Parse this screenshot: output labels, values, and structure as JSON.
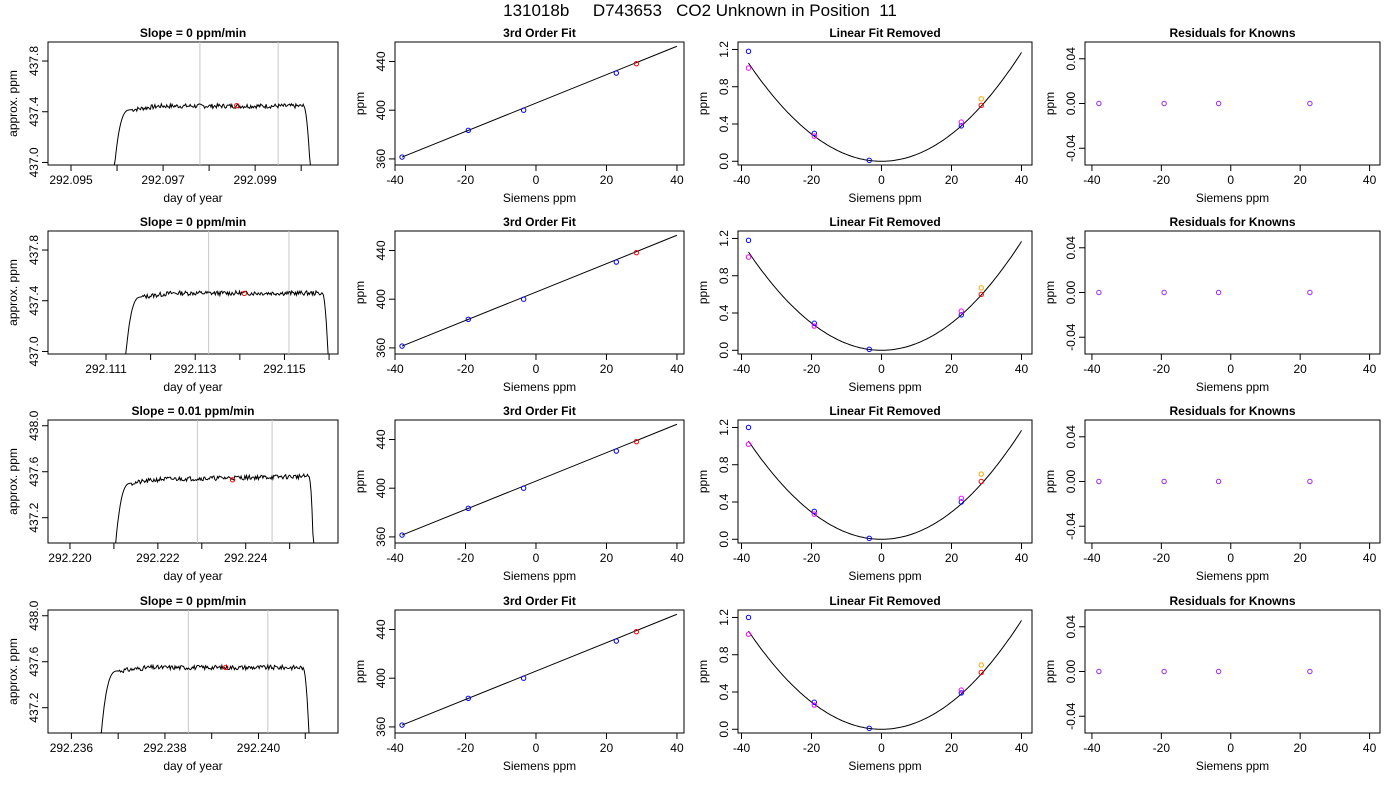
{
  "title": "131018b     D743653   CO2 Unknown in Position  11",
  "colors": {
    "series_line": "#000000",
    "time_marker": "#c8c8c8",
    "known_point": "#0000ff",
    "unknown_point": "#ff0000",
    "ref_magenta": "#ff00ff",
    "ref_orange": "#ffa500",
    "purple_point": "#a020f0"
  },
  "chart_data": [
    {
      "row": 1,
      "panel": "time",
      "type": "line",
      "title": "Slope =  0  ppm/min",
      "xlabel": "day of year",
      "ylabel": "approx. ppm",
      "xlim": [
        292.0945,
        292.1008
      ],
      "ylim": [
        436.98,
        437.95
      ],
      "xticks": [
        292.095,
        292.097,
        292.099
      ],
      "xtick_labels": [
        "292.095",
        "292.097",
        "292.099"
      ],
      "minor_ticks": [
        292.096,
        292.098,
        292.1
      ],
      "yticks": [
        437.0,
        437.4,
        437.8
      ],
      "ytick_labels": [
        "437.0",
        "437.4",
        "437.8"
      ],
      "vlines": [
        292.0978,
        292.0995
      ],
      "plateau": 437.445,
      "x_start": 292.0959,
      "x_rise_end": 292.0963,
      "x_fall_start": 292.10005,
      "x_end": 292.10022,
      "noise_seed": 7,
      "noise_amp": 0.018,
      "unknown_point": {
        "x": 292.0986,
        "y": 437.448
      }
    },
    {
      "row": 1,
      "panel": "fit",
      "type": "line",
      "title": "3rd Order Fit",
      "xlabel": "Siemens ppm",
      "ylabel": "ppm",
      "xlim": [
        -40,
        42
      ],
      "ylim": [
        355,
        456
      ],
      "xticks": [
        -40,
        -20,
        0,
        20,
        40
      ],
      "xtick_labels": [
        "-40",
        "-20",
        "0",
        "20",
        "40"
      ],
      "yticks": [
        360,
        400,
        440
      ],
      "ytick_labels": [
        "360",
        "400",
        "440"
      ],
      "line": {
        "x": [
          -38,
          40
        ],
        "y": [
          361.5,
          452.5
        ]
      },
      "known_points": {
        "x": [
          -38,
          -19.2,
          -3.5,
          22.8
        ],
        "y": [
          361.5,
          383.5,
          400,
          430.5
        ]
      },
      "unknown_point": {
        "x": 28.5,
        "y": 438.2
      }
    },
    {
      "row": 1,
      "panel": "linfit",
      "type": "scatter",
      "title": "Linear Fit Removed",
      "xlabel": "Siemens ppm",
      "ylabel": "ppm",
      "xlim": [
        -41,
        43
      ],
      "ylim": [
        -0.04,
        1.28
      ],
      "xticks": [
        -40,
        -20,
        0,
        20,
        40
      ],
      "xtick_labels": [
        "-40",
        "-20",
        "0",
        "20",
        "40"
      ],
      "yticks": [
        0,
        0.4,
        0.8,
        1.2
      ],
      "ytick_labels": [
        "0.0",
        "0.4",
        "0.8",
        "1.2"
      ],
      "curve_coef": 0.00073,
      "points": [
        {
          "x": -38,
          "y": 1.18,
          "c": "blue"
        },
        {
          "x": -38,
          "y": 1.0,
          "c": "magenta"
        },
        {
          "x": -19.2,
          "y": 0.3,
          "c": "blue"
        },
        {
          "x": -19.2,
          "y": 0.27,
          "c": "magenta"
        },
        {
          "x": -3.5,
          "y": 0.01,
          "c": "blue"
        },
        {
          "x": 22.8,
          "y": 0.38,
          "c": "blue"
        },
        {
          "x": 22.8,
          "y": 0.42,
          "c": "magenta"
        },
        {
          "x": 28.5,
          "y": 0.6,
          "c": "red"
        },
        {
          "x": 28.5,
          "y": 0.67,
          "c": "orange"
        }
      ]
    },
    {
      "row": 1,
      "panel": "resid",
      "type": "scatter",
      "title": "Residuals for Knowns",
      "xlabel": "Siemens ppm",
      "ylabel": "ppm",
      "xlim": [
        -42,
        43
      ],
      "ylim": [
        -0.055,
        0.055
      ],
      "xticks": [
        -40,
        -20,
        0,
        20,
        40
      ],
      "xtick_labels": [
        "-40",
        "-20",
        "0",
        "20",
        "40"
      ],
      "yticks": [
        -0.04,
        0,
        0.04
      ],
      "ytick_labels": [
        "-0.04",
        "0.00",
        "0.04"
      ],
      "points": [
        {
          "x": -38,
          "y": 0
        },
        {
          "x": -19.2,
          "y": 0
        },
        {
          "x": -3.5,
          "y": 0
        },
        {
          "x": 22.8,
          "y": 0
        }
      ]
    },
    {
      "row": 2,
      "panel": "time",
      "type": "line",
      "title": "Slope =  0  ppm/min",
      "xlabel": "day of year",
      "ylabel": "approx. ppm",
      "xlim": [
        292.1097,
        292.1162
      ],
      "ylim": [
        436.98,
        437.95
      ],
      "xticks": [
        292.111,
        292.113,
        292.115
      ],
      "xtick_labels": [
        "292.111",
        "292.113",
        "292.115"
      ],
      "minor_ticks": [
        292.112,
        292.114,
        292.116
      ],
      "yticks": [
        437.0,
        437.4,
        437.8
      ],
      "ytick_labels": [
        "437.0",
        "437.4",
        "437.8"
      ],
      "vlines": [
        292.1133,
        292.1151
      ],
      "plateau": 437.46,
      "x_start": 292.1114,
      "x_rise_end": 292.1118,
      "x_fall_start": 292.11585,
      "x_end": 292.116,
      "noise_seed": 13,
      "noise_amp": 0.018,
      "unknown_point": {
        "x": 292.1141,
        "y": 437.458
      }
    },
    {
      "row": 2,
      "panel": "fit",
      "type": "line",
      "title": "3rd Order Fit",
      "xlabel": "Siemens ppm",
      "ylabel": "ppm",
      "xlim": [
        -40,
        42
      ],
      "ylim": [
        355,
        456
      ],
      "xticks": [
        -40,
        -20,
        0,
        20,
        40
      ],
      "xtick_labels": [
        "-40",
        "-20",
        "0",
        "20",
        "40"
      ],
      "yticks": [
        360,
        400,
        440
      ],
      "ytick_labels": [
        "360",
        "400",
        "440"
      ],
      "line": {
        "x": [
          -38,
          40
        ],
        "y": [
          361.5,
          452.5
        ]
      },
      "known_points": {
        "x": [
          -38,
          -19.2,
          -3.5,
          22.8
        ],
        "y": [
          361.5,
          383.5,
          400,
          430.5
        ]
      },
      "unknown_point": {
        "x": 28.5,
        "y": 438.2
      }
    },
    {
      "row": 2,
      "panel": "linfit",
      "type": "scatter",
      "title": "Linear Fit Removed",
      "xlabel": "Siemens ppm",
      "ylabel": "ppm",
      "xlim": [
        -41,
        43
      ],
      "ylim": [
        -0.04,
        1.28
      ],
      "xticks": [
        -40,
        -20,
        0,
        20,
        40
      ],
      "xtick_labels": [
        "-40",
        "-20",
        "0",
        "20",
        "40"
      ],
      "yticks": [
        0,
        0.4,
        0.8,
        1.2
      ],
      "ytick_labels": [
        "0.0",
        "0.4",
        "0.8",
        "1.2"
      ],
      "curve_coef": 0.00073,
      "points": [
        {
          "x": -38,
          "y": 1.18,
          "c": "blue"
        },
        {
          "x": -38,
          "y": 1.0,
          "c": "magenta"
        },
        {
          "x": -19.2,
          "y": 0.29,
          "c": "blue"
        },
        {
          "x": -19.2,
          "y": 0.26,
          "c": "magenta"
        },
        {
          "x": -3.5,
          "y": 0.01,
          "c": "blue"
        },
        {
          "x": 22.8,
          "y": 0.38,
          "c": "blue"
        },
        {
          "x": 22.8,
          "y": 0.42,
          "c": "magenta"
        },
        {
          "x": 28.5,
          "y": 0.6,
          "c": "red"
        },
        {
          "x": 28.5,
          "y": 0.67,
          "c": "orange"
        }
      ]
    },
    {
      "row": 2,
      "panel": "resid",
      "type": "scatter",
      "title": "Residuals for Knowns",
      "xlabel": "Siemens ppm",
      "ylabel": "ppm",
      "xlim": [
        -42,
        43
      ],
      "ylim": [
        -0.055,
        0.055
      ],
      "xticks": [
        -40,
        -20,
        0,
        20,
        40
      ],
      "xtick_labels": [
        "-40",
        "-20",
        "0",
        "20",
        "40"
      ],
      "yticks": [
        -0.04,
        0,
        0.04
      ],
      "ytick_labels": [
        "-0.04",
        "0.00",
        "0.04"
      ],
      "points": [
        {
          "x": -38,
          "y": 0
        },
        {
          "x": -19.2,
          "y": 0
        },
        {
          "x": -3.5,
          "y": 0
        },
        {
          "x": 22.8,
          "y": 0
        }
      ]
    },
    {
      "row": 3,
      "panel": "time",
      "type": "line",
      "title": "Slope =  0.01  ppm/min",
      "xlabel": "day of year",
      "ylabel": "approx. ppm",
      "xlim": [
        292.2195,
        292.2261
      ],
      "ylim": [
        436.98,
        438.05
      ],
      "xticks": [
        292.22,
        292.222,
        292.224
      ],
      "xtick_labels": [
        "292.220",
        "292.222",
        "292.224"
      ],
      "minor_ticks": [
        292.221,
        292.223,
        292.225
      ],
      "yticks": [
        437.2,
        437.6,
        438.0
      ],
      "ytick_labels": [
        "437.2",
        "437.6",
        "438.0"
      ],
      "vlines": [
        292.2229,
        292.2246
      ],
      "plateau": 437.53,
      "x_start": 292.221,
      "x_rise_end": 292.2214,
      "x_fall_start": 292.22545,
      "x_end": 292.22555,
      "slope_rise": 0.03,
      "noise_seed": 21,
      "noise_amp": 0.02,
      "unknown_point": {
        "x": 292.2237,
        "y": 437.53
      }
    },
    {
      "row": 3,
      "panel": "fit",
      "type": "line",
      "title": "3rd Order Fit",
      "xlabel": "Siemens ppm",
      "ylabel": "ppm",
      "xlim": [
        -40,
        42
      ],
      "ylim": [
        355,
        456
      ],
      "xticks": [
        -40,
        -20,
        0,
        20,
        40
      ],
      "xtick_labels": [
        "-40",
        "-20",
        "0",
        "20",
        "40"
      ],
      "yticks": [
        360,
        400,
        440
      ],
      "ytick_labels": [
        "360",
        "400",
        "440"
      ],
      "line": {
        "x": [
          -38,
          40
        ],
        "y": [
          361.5,
          452.5
        ]
      },
      "known_points": {
        "x": [
          -38,
          -19.2,
          -3.5,
          22.8
        ],
        "y": [
          361.5,
          383.5,
          400,
          430.5
        ]
      },
      "unknown_point": {
        "x": 28.5,
        "y": 438.2
      }
    },
    {
      "row": 3,
      "panel": "linfit",
      "type": "scatter",
      "title": "Linear Fit Removed",
      "xlabel": "Siemens ppm",
      "ylabel": "ppm",
      "xlim": [
        -41,
        43
      ],
      "ylim": [
        -0.04,
        1.28
      ],
      "xticks": [
        -40,
        -20,
        0,
        20,
        40
      ],
      "xtick_labels": [
        "-40",
        "-20",
        "0",
        "20",
        "40"
      ],
      "yticks": [
        0,
        0.4,
        0.8,
        1.2
      ],
      "ytick_labels": [
        "0.0",
        "0.4",
        "0.8",
        "1.2"
      ],
      "curve_coef": 0.00073,
      "points": [
        {
          "x": -38,
          "y": 1.2,
          "c": "blue"
        },
        {
          "x": -38,
          "y": 1.02,
          "c": "magenta"
        },
        {
          "x": -19.2,
          "y": 0.3,
          "c": "blue"
        },
        {
          "x": -19.2,
          "y": 0.27,
          "c": "magenta"
        },
        {
          "x": -3.5,
          "y": 0.01,
          "c": "blue"
        },
        {
          "x": 22.8,
          "y": 0.4,
          "c": "blue"
        },
        {
          "x": 22.8,
          "y": 0.44,
          "c": "magenta"
        },
        {
          "x": 28.5,
          "y": 0.62,
          "c": "red"
        },
        {
          "x": 28.5,
          "y": 0.7,
          "c": "orange"
        }
      ]
    },
    {
      "row": 3,
      "panel": "resid",
      "type": "scatter",
      "title": "Residuals for Knowns",
      "xlabel": "Siemens ppm",
      "ylabel": "ppm",
      "xlim": [
        -42,
        43
      ],
      "ylim": [
        -0.055,
        0.055
      ],
      "xticks": [
        -40,
        -20,
        0,
        20,
        40
      ],
      "xtick_labels": [
        "-40",
        "-20",
        "0",
        "20",
        "40"
      ],
      "yticks": [
        -0.04,
        0,
        0.04
      ],
      "ytick_labels": [
        "-0.04",
        "0.00",
        "0.04"
      ],
      "points": [
        {
          "x": -38,
          "y": 0
        },
        {
          "x": -19.2,
          "y": 0
        },
        {
          "x": -3.5,
          "y": 0
        },
        {
          "x": 22.8,
          "y": 0
        }
      ]
    },
    {
      "row": 4,
      "panel": "time",
      "type": "line",
      "title": "Slope =  0  ppm/min",
      "xlabel": "day of year",
      "ylabel": "approx. ppm",
      "xlim": [
        292.2355,
        292.2417
      ],
      "ylim": [
        436.98,
        438.05
      ],
      "xticks": [
        292.236,
        292.238,
        292.24
      ],
      "xtick_labels": [
        "292.236",
        "292.238",
        "292.240"
      ],
      "minor_ticks": [
        292.237,
        292.239,
        292.241
      ],
      "yticks": [
        437.2,
        437.6,
        438.0
      ],
      "ytick_labels": [
        "437.2",
        "437.6",
        "438.0"
      ],
      "vlines": [
        292.2385,
        292.2402
      ],
      "plateau": 437.55,
      "x_start": 292.2366,
      "x_rise_end": 292.237,
      "x_fall_start": 292.24095,
      "x_end": 292.2411,
      "noise_seed": 31,
      "noise_amp": 0.02,
      "unknown_point": {
        "x": 292.2393,
        "y": 437.55
      }
    },
    {
      "row": 4,
      "panel": "fit",
      "type": "line",
      "title": "3rd Order Fit",
      "xlabel": "Siemens ppm",
      "ylabel": "ppm",
      "xlim": [
        -40,
        42
      ],
      "ylim": [
        355,
        456
      ],
      "xticks": [
        -40,
        -20,
        0,
        20,
        40
      ],
      "xtick_labels": [
        "-40",
        "-20",
        "0",
        "20",
        "40"
      ],
      "yticks": [
        360,
        400,
        440
      ],
      "ytick_labels": [
        "360",
        "400",
        "440"
      ],
      "line": {
        "x": [
          -38,
          40
        ],
        "y": [
          361.5,
          452.5
        ]
      },
      "known_points": {
        "x": [
          -38,
          -19.2,
          -3.5,
          22.8
        ],
        "y": [
          361.5,
          383.5,
          400,
          430.5
        ]
      },
      "unknown_point": {
        "x": 28.5,
        "y": 438.2
      }
    },
    {
      "row": 4,
      "panel": "linfit",
      "type": "scatter",
      "title": "Linear Fit Removed",
      "xlabel": "Siemens ppm",
      "ylabel": "ppm",
      "xlim": [
        -41,
        43
      ],
      "ylim": [
        -0.04,
        1.28
      ],
      "xticks": [
        -40,
        -20,
        0,
        20,
        40
      ],
      "xtick_labels": [
        "-40",
        "-20",
        "0",
        "20",
        "40"
      ],
      "yticks": [
        0,
        0.4,
        0.8,
        1.2
      ],
      "ytick_labels": [
        "0.0",
        "0.4",
        "0.8",
        "1.2"
      ],
      "curve_coef": 0.00073,
      "points": [
        {
          "x": -38,
          "y": 1.2,
          "c": "blue"
        },
        {
          "x": -38,
          "y": 1.02,
          "c": "magenta"
        },
        {
          "x": -19.2,
          "y": 0.29,
          "c": "blue"
        },
        {
          "x": -19.2,
          "y": 0.26,
          "c": "magenta"
        },
        {
          "x": -3.5,
          "y": 0.01,
          "c": "blue"
        },
        {
          "x": 22.8,
          "y": 0.39,
          "c": "blue"
        },
        {
          "x": 22.8,
          "y": 0.42,
          "c": "magenta"
        },
        {
          "x": 28.5,
          "y": 0.61,
          "c": "red"
        },
        {
          "x": 28.5,
          "y": 0.69,
          "c": "orange"
        }
      ]
    },
    {
      "row": 4,
      "panel": "resid",
      "type": "scatter",
      "title": "Residuals for Knowns",
      "xlabel": "Siemens ppm",
      "ylabel": "ppm",
      "xlim": [
        -42,
        43
      ],
      "ylim": [
        -0.055,
        0.055
      ],
      "xticks": [
        -40,
        -20,
        0,
        20,
        40
      ],
      "xtick_labels": [
        "-40",
        "-20",
        "0",
        "20",
        "40"
      ],
      "yticks": [
        -0.04,
        0,
        0.04
      ],
      "ytick_labels": [
        "-0.04",
        "0.00",
        "0.04"
      ],
      "points": [
        {
          "x": -38,
          "y": 0
        },
        {
          "x": -19.2,
          "y": 0
        },
        {
          "x": -3.5,
          "y": 0
        },
        {
          "x": 22.8,
          "y": 0
        }
      ]
    }
  ]
}
